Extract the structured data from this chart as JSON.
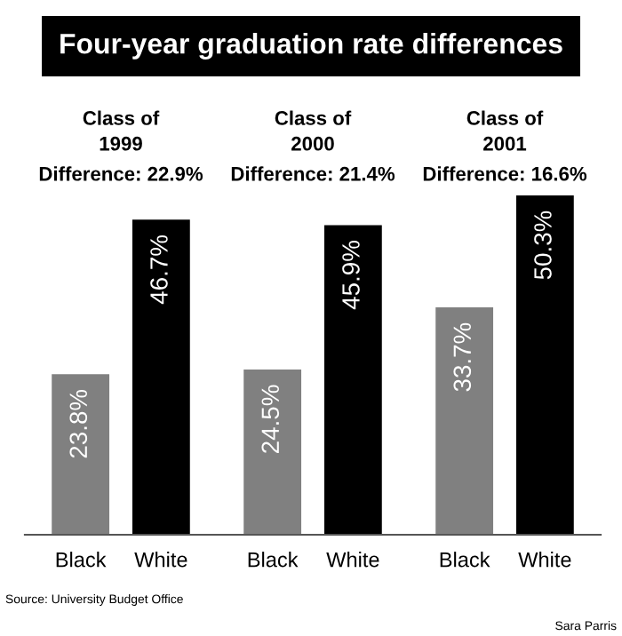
{
  "chart_data": {
    "type": "bar",
    "title": "Four-year graduation rate differences",
    "categories": [
      "Class of 1999",
      "Class of 2000",
      "Class of 2001"
    ],
    "series": [
      {
        "name": "Black",
        "color": "#808080",
        "values": [
          23.8,
          24.5,
          33.7
        ],
        "value_labels": [
          "23.8%",
          "24.5%",
          "33.7%"
        ]
      },
      {
        "name": "White",
        "color": "#000000",
        "values": [
          46.7,
          45.9,
          50.3
        ],
        "value_labels": [
          "46.7%",
          "45.9%",
          "50.3%"
        ]
      }
    ],
    "annotations": [
      "Difference: 22.9%",
      "Difference: 21.4%",
      "Difference: 16.6%",
      "Source: University Budget Office",
      "Sara Parris"
    ],
    "legend": false
  }
}
